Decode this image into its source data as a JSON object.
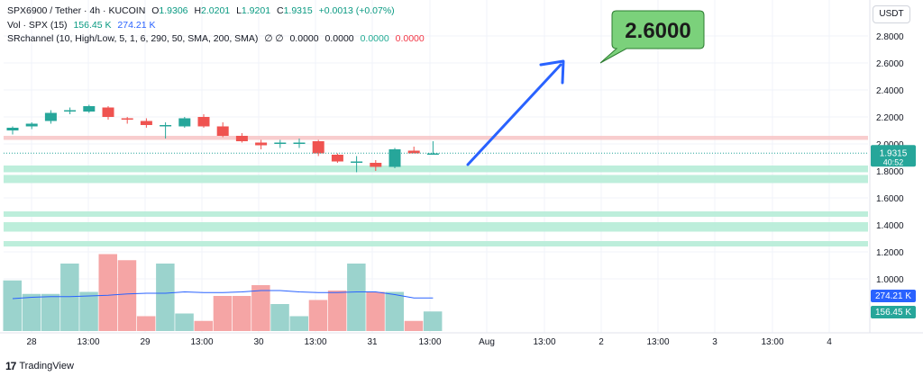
{
  "header": {
    "symbol_line": "SPX6900 / Tether · 4h · KUCOIN",
    "open_label": "O",
    "open": "1.9306",
    "high_label": "H",
    "high": "2.0201",
    "low_label": "L",
    "low": "1.9201",
    "close_label": "C",
    "close": "1.9315",
    "change": "+0.0013 (+0.07%)",
    "vol_label": "Vol · SPX (15)",
    "vol_value": "156.45 K",
    "vol_ma": "274.21 K",
    "indicator_label": "SRchannel (10, High/Low, 5, 1, 6, 290, 50, SMA, 200, SMA)",
    "indicator_symbols": "∅ ∅",
    "indicator_v1": "0.0000",
    "indicator_v2": "0.0000",
    "indicator_v3": "0.0000",
    "indicator_v4": "0.0000"
  },
  "currency_button": "USDT",
  "branding": "TradingView",
  "annotation": {
    "target_label": "2.6000"
  },
  "colors": {
    "up": "#26a69a",
    "down": "#ef5350",
    "vol_up": "#9bd3cd",
    "vol_down": "#f5a5a5",
    "zone_green": "#b2ebd5",
    "zone_red": "#f7c4c6",
    "arrow": "#2962ff",
    "callout": "#7bd17b"
  },
  "chart_data": {
    "type": "candlestick",
    "price_axis": {
      "ticks": [
        "2.8000",
        "2.6000",
        "2.4000",
        "2.2000",
        "2.0000",
        "1.8000",
        "1.6000",
        "1.4000",
        "1.2000",
        "1.0000"
      ],
      "range": [
        0.8,
        2.96
      ]
    },
    "last_price": "1.9315",
    "countdown": "40:52",
    "volume_ma_label": "274.21 K",
    "volume_label": "156.45 K",
    "time_axis": [
      "28",
      "13:00",
      "29",
      "13:00",
      "30",
      "13:00",
      "31",
      "13:00",
      "Aug",
      "13:00",
      "2",
      "13:00",
      "3",
      "13:00",
      "4"
    ],
    "candles": [
      {
        "o": 2.1,
        "h": 2.13,
        "l": 2.07,
        "c": 2.12
      },
      {
        "o": 2.13,
        "h": 2.16,
        "l": 2.11,
        "c": 2.15
      },
      {
        "o": 2.17,
        "h": 2.25,
        "l": 2.15,
        "c": 2.23
      },
      {
        "o": 2.24,
        "h": 2.27,
        "l": 2.22,
        "c": 2.25
      },
      {
        "o": 2.24,
        "h": 2.29,
        "l": 2.23,
        "c": 2.28
      },
      {
        "o": 2.27,
        "h": 2.28,
        "l": 2.18,
        "c": 2.2
      },
      {
        "o": 2.19,
        "h": 2.2,
        "l": 2.15,
        "c": 2.18
      },
      {
        "o": 2.17,
        "h": 2.19,
        "l": 2.12,
        "c": 2.14
      },
      {
        "o": 2.14,
        "h": 2.16,
        "l": 2.04,
        "c": 2.14
      },
      {
        "o": 2.13,
        "h": 2.2,
        "l": 2.12,
        "c": 2.19
      },
      {
        "o": 2.2,
        "h": 2.22,
        "l": 2.12,
        "c": 2.13
      },
      {
        "o": 2.13,
        "h": 2.16,
        "l": 2.05,
        "c": 2.06
      },
      {
        "o": 2.06,
        "h": 2.08,
        "l": 2.01,
        "c": 2.02
      },
      {
        "o": 2.01,
        "h": 2.03,
        "l": 1.96,
        "c": 1.99
      },
      {
        "o": 2.0,
        "h": 2.03,
        "l": 1.97,
        "c": 2.01
      },
      {
        "o": 2.0,
        "h": 2.04,
        "l": 1.97,
        "c": 2.01
      },
      {
        "o": 2.02,
        "h": 2.03,
        "l": 1.91,
        "c": 1.93
      },
      {
        "o": 1.92,
        "h": 1.93,
        "l": 1.86,
        "c": 1.87
      },
      {
        "o": 1.87,
        "h": 1.91,
        "l": 1.79,
        "c": 1.87
      },
      {
        "o": 1.86,
        "h": 1.88,
        "l": 1.8,
        "c": 1.83
      },
      {
        "o": 1.83,
        "h": 1.97,
        "l": 1.82,
        "c": 1.96
      },
      {
        "o": 1.95,
        "h": 1.98,
        "l": 1.93,
        "c": 1.93
      },
      {
        "o": 1.93,
        "h": 2.02,
        "l": 1.92,
        "c": 1.93
      }
    ],
    "volume_heights": [
      0.75,
      0.55,
      0.55,
      1.0,
      0.58,
      1.14,
      1.05,
      0.22,
      1.0,
      0.26,
      0.15,
      0.52,
      0.52,
      0.68,
      0.4,
      0.22,
      0.46,
      0.6,
      1.0,
      0.58,
      0.58,
      0.15,
      0.29
    ],
    "volume_ma": [
      0.48,
      0.5,
      0.51,
      0.51,
      0.52,
      0.53,
      0.55,
      0.56,
      0.56,
      0.58,
      0.57,
      0.57,
      0.58,
      0.6,
      0.6,
      0.58,
      0.57,
      0.57,
      0.58,
      0.58,
      0.54,
      0.49,
      0.49
    ],
    "sr_zones": [
      {
        "from": 2.03,
        "to": 2.06,
        "color": "red"
      },
      {
        "from": 1.79,
        "to": 1.84,
        "color": "green"
      },
      {
        "from": 1.71,
        "to": 1.77,
        "color": "green"
      },
      {
        "from": 1.46,
        "to": 1.5,
        "color": "green"
      },
      {
        "from": 1.35,
        "to": 1.42,
        "color": "green"
      },
      {
        "from": 1.24,
        "to": 1.28,
        "color": "green"
      }
    ]
  }
}
